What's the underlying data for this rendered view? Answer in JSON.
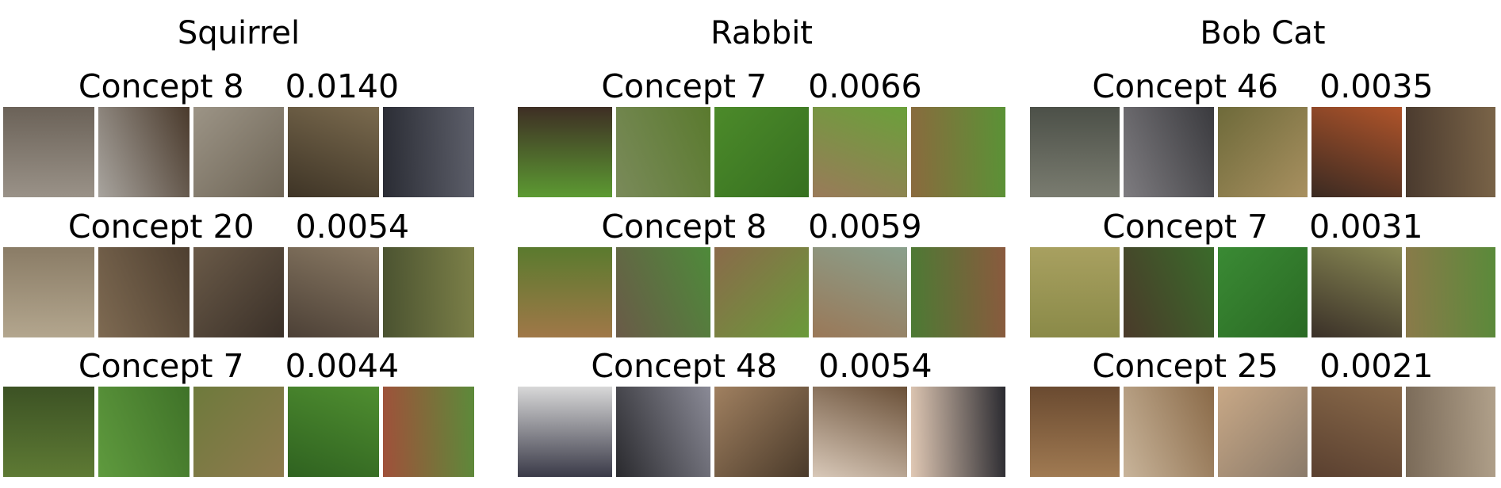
{
  "columns": [
    {
      "title": "Squirrel",
      "concepts": [
        {
          "label": "Concept 8",
          "score": "0.0140"
        },
        {
          "label": "Concept 20",
          "score": "0.0054"
        },
        {
          "label": "Concept 7",
          "score": "0.0044"
        }
      ]
    },
    {
      "title": "Rabbit",
      "concepts": [
        {
          "label": "Concept 7",
          "score": "0.0066"
        },
        {
          "label": "Concept 8",
          "score": "0.0059"
        },
        {
          "label": "Concept 48",
          "score": "0.0054"
        }
      ]
    },
    {
      "title": "Bob Cat",
      "concepts": [
        {
          "label": "Concept 46",
          "score": "0.0035"
        },
        {
          "label": "Concept 7",
          "score": "0.0031"
        },
        {
          "label": "Concept 25",
          "score": "0.0021"
        }
      ]
    }
  ]
}
